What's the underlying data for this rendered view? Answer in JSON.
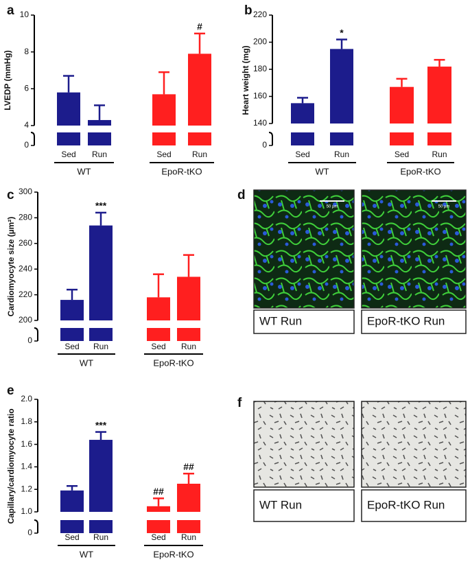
{
  "chart_data": [
    {
      "type": "bar",
      "panel": "a",
      "y_label": "LVEDP (mmHg)",
      "categories": [
        "Sed",
        "Run"
      ],
      "series": [
        {
          "name": "WT",
          "color": "#1c1c8c",
          "values": [
            5.8,
            4.3
          ],
          "errors": [
            0.9,
            0.8
          ],
          "annotations": [
            null,
            null
          ]
        },
        {
          "name": "EpoR-tKO",
          "color": "#ff1f1f",
          "values": [
            5.7,
            7.9
          ],
          "errors": [
            1.2,
            1.1
          ],
          "annotations": [
            null,
            "#"
          ]
        }
      ],
      "ylim": [
        4,
        10
      ],
      "yticks": [
        4,
        6,
        8,
        10
      ],
      "lower_yticks": [
        0
      ]
    },
    {
      "type": "bar",
      "panel": "b",
      "y_label": "Heart weight (mg)",
      "categories": [
        "Sed",
        "Run"
      ],
      "series": [
        {
          "name": "WT",
          "color": "#1c1c8c",
          "values": [
            155,
            195
          ],
          "errors": [
            4,
            7
          ],
          "annotations": [
            null,
            "*"
          ]
        },
        {
          "name": "EpoR-tKO",
          "color": "#ff1f1f",
          "values": [
            167,
            182
          ],
          "errors": [
            6,
            5
          ],
          "annotations": [
            null,
            null
          ]
        }
      ],
      "ylim": [
        140,
        220
      ],
      "yticks": [
        140,
        160,
        180,
        200,
        220
      ],
      "lower_yticks": [
        0
      ]
    },
    {
      "type": "bar",
      "panel": "c",
      "y_label": "Cardiomyocyte size (µm²)",
      "categories": [
        "Sed",
        "Run"
      ],
      "series": [
        {
          "name": "WT",
          "color": "#1c1c8c",
          "values": [
            216,
            274
          ],
          "errors": [
            8,
            10
          ],
          "annotations": [
            null,
            "***"
          ]
        },
        {
          "name": "EpoR-tKO",
          "color": "#ff1f1f",
          "values": [
            218,
            234
          ],
          "errors": [
            18,
            17
          ],
          "annotations": [
            null,
            null
          ]
        }
      ],
      "ylim": [
        200,
        300
      ],
      "yticks": [
        200,
        220,
        240,
        260,
        280,
        300
      ],
      "lower_yticks": [
        0
      ]
    },
    {
      "type": "bar",
      "panel": "e",
      "y_label": "Capillary/cardiomyocyte ratio",
      "categories": [
        "Sed",
        "Run"
      ],
      "series": [
        {
          "name": "WT",
          "color": "#1c1c8c",
          "values": [
            1.19,
            1.64
          ],
          "errors": [
            0.04,
            0.07
          ],
          "annotations": [
            null,
            "***"
          ]
        },
        {
          "name": "EpoR-tKO",
          "color": "#ff1f1f",
          "values": [
            1.05,
            1.25
          ],
          "errors": [
            0.07,
            0.09
          ],
          "annotations": [
            "##",
            "##"
          ]
        }
      ],
      "ylim": [
        1,
        2
      ],
      "yticks": [
        {
          "value": 1,
          "label": "1.0"
        },
        1.2,
        1.4,
        1.6,
        1.8,
        {
          "value": 2,
          "label": "2.0"
        }
      ],
      "lower_yticks": [
        0
      ]
    }
  ],
  "image_panels": [
    {
      "panel": "d",
      "scale_bar": "50 µm",
      "captions": [
        "WT Run",
        "EpoR-tKO Run"
      ]
    },
    {
      "panel": "f",
      "captions": [
        "WT Run",
        "EpoR-tKO Run"
      ]
    }
  ]
}
